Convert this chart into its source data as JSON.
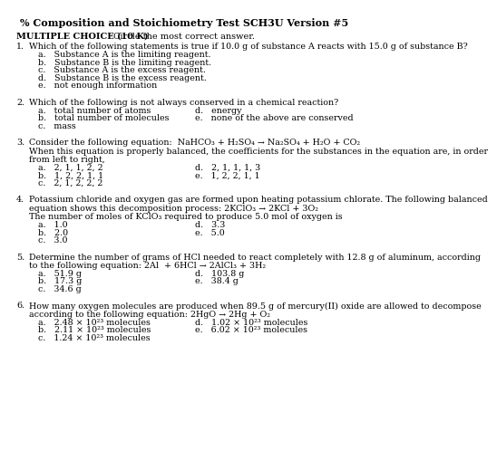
{
  "title": "% Composition and Stoichiometry Test SCH3U Version #5",
  "background_color": "#ffffff",
  "questions": [
    {
      "number": "1.",
      "lines": [
        "Which of the following statements is true if 10.0 g of substance A reacts with 15.0 g of substance B?"
      ],
      "options_left": [
        "a.   Substance A is the limiting reagent.",
        "b.   Substance B is the limiting reagent.",
        "c.   Substance A is the excess reagent.",
        "d.   Substance B is the excess reagent.",
        "e.   not enough information"
      ],
      "options_right": []
    },
    {
      "number": "2.",
      "lines": [
        "Which of the following is not always conserved in a chemical reaction?"
      ],
      "options_left": [
        "a.   total number of atoms",
        "b.   total number of molecules",
        "c.   mass"
      ],
      "options_right": [
        "d.   energy",
        "e.   none of the above are conserved"
      ]
    },
    {
      "number": "3.",
      "lines": [
        "Consider the following equation:  NaHCO₃ + H₂SO₄ → Na₂SO₄ + H₂O + CO₂",
        "When this equation is properly balanced, the coefficients for the substances in the equation are, in order",
        "from left to right,"
      ],
      "options_left": [
        "a.   2, 1, 1, 2, 2",
        "b.   1, 2, 2, 1, 1",
        "c.   2, 1, 2, 2, 2"
      ],
      "options_right": [
        "d.   2, 1, 1, 1, 3",
        "e.   1, 2, 2, 1, 1"
      ]
    },
    {
      "number": "4.",
      "lines": [
        "Potassium chloride and oxygen gas are formed upon heating potassium chlorate. The following balanced",
        "equation shows this decomposition process: 2KClO₃ → 2KCl + 3O₂",
        "The number of moles of KClO₃ required to produce 5.0 mol of oxygen is"
      ],
      "options_left": [
        "a.   1.0",
        "b.   2.0",
        "c.   3.0"
      ],
      "options_right": [
        "d.   3.3",
        "e.   5.0"
      ]
    },
    {
      "number": "5.",
      "lines": [
        "Determine the number of grams of HCl needed to react completely with 12.8 g of aluminum, according",
        "to the following equation: 2Al  + 6HCl → 2AlCl₃ + 3H₂"
      ],
      "options_left": [
        "a.   51.9 g",
        "b.   17.3 g",
        "c.   34.6 g"
      ],
      "options_right": [
        "d.   103.8 g",
        "e.   38.4 g"
      ]
    },
    {
      "number": "6.",
      "lines": [
        "How many oxygen molecules are produced when 89.5 g of mercury(II) oxide are allowed to decompose",
        "according to the following equation: 2HgO → 2Hg + O₂"
      ],
      "options_left": [
        "a.   2.48 × 10²³ molecules",
        "b.   2.11 × 10²³ molecules",
        "c.   1.24 × 10²³ molecules"
      ],
      "options_right": [
        "d.   1.02 × 10²³ molecules",
        "e.   6.02 × 10²³ molecules"
      ]
    }
  ]
}
